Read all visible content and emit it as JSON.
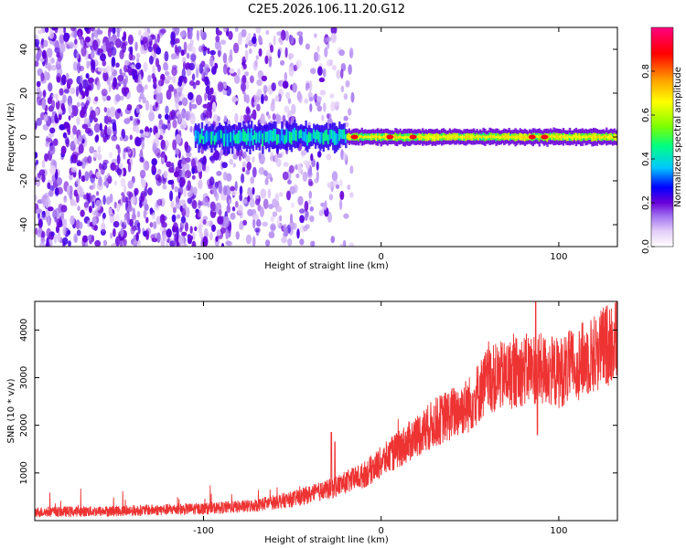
{
  "figure_title": "C2E5.2026.106.11.20.G12",
  "chart_data": [
    {
      "type": "heatmap",
      "name": "spectrogram",
      "xlabel": "Height of straight line (km)",
      "ylabel": "Frequency (Hz)",
      "xlim": [
        -195,
        133
      ],
      "ylim": [
        -50,
        50
      ],
      "xticks": [
        -100,
        0,
        100
      ],
      "yticks": [
        -40,
        -20,
        0,
        20,
        40
      ],
      "colorbar": {
        "label": "Normalized spectral amplitude",
        "range": [
          0,
          1
        ],
        "ticks": [
          0,
          0.2,
          0.4,
          0.6,
          0.8
        ],
        "colormap": [
          "#ffffff",
          "#e4cdf8",
          "#a070f0",
          "#6a00d8",
          "#0000ff",
          "#00c8ff",
          "#00ff80",
          "#80ff00",
          "#ffff00",
          "#ffa000",
          "#ff0000",
          "#ff0080"
        ]
      },
      "features": {
        "noise_region_end_km": -20,
        "signal_line_start_km": -105,
        "signal_line_frequency_hz": 0,
        "hot_spots_km": [
          -15,
          5,
          18,
          85,
          92
        ]
      }
    },
    {
      "type": "line",
      "name": "snr",
      "xlabel": "Height of straight line (km)",
      "ylabel": "SNR (10 * v/v)",
      "xlim": [
        -195,
        133
      ],
      "ylim": [
        0,
        4600
      ],
      "xticks": [
        -100,
        0,
        100
      ],
      "yticks": [
        1000,
        2000,
        3000,
        4000
      ],
      "line_color": "#ee3333",
      "trend_x": [
        -195,
        -150,
        -100,
        -75,
        -50,
        -30,
        -10,
        10,
        30,
        50,
        60,
        85,
        100,
        120,
        133
      ],
      "trend_y": [
        180,
        200,
        250,
        300,
        450,
        650,
        950,
        1500,
        2050,
        2450,
        2950,
        3200,
        3100,
        3500,
        3850
      ],
      "spikes": [
        {
          "x": 87,
          "y": 4600
        },
        {
          "x": 88,
          "y": 1800
        },
        {
          "x": -28,
          "y": 1850
        },
        {
          "x": -26,
          "y": 1650
        }
      ]
    }
  ]
}
